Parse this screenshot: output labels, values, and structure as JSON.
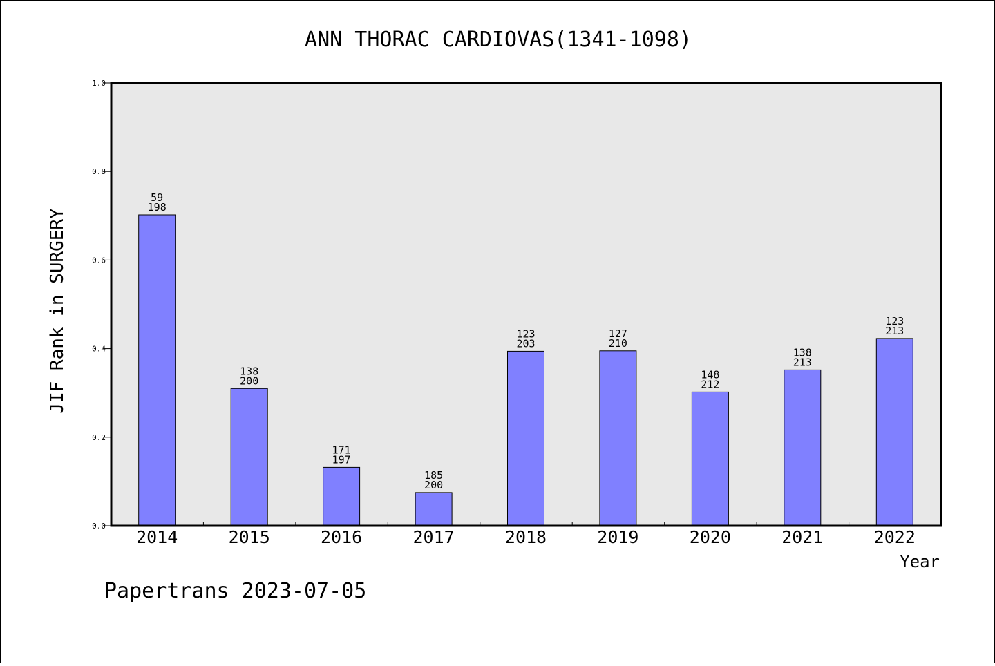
{
  "chart_data": {
    "type": "bar",
    "title": "ANN THORAC CARDIOVAS(1341-1098)",
    "xlabel": "Year",
    "ylabel": "JIF Rank in SURGERY",
    "categories": [
      "2014",
      "2015",
      "2016",
      "2017",
      "2018",
      "2019",
      "2020",
      "2021",
      "2022"
    ],
    "values": [
      0.702,
      0.31,
      0.132,
      0.075,
      0.394,
      0.395,
      0.302,
      0.352,
      0.423
    ],
    "labels_top": [
      "59",
      "138",
      "171",
      "185",
      "123",
      "127",
      "148",
      "138",
      "123"
    ],
    "labels_bottom": [
      "198",
      "200",
      "197",
      "200",
      "203",
      "210",
      "212",
      "213",
      "213"
    ],
    "ylim": [
      0,
      1.0
    ],
    "yticks": [
      "0.0",
      "0.2",
      "0.4",
      "0.6",
      "0.8",
      "1.0"
    ],
    "bar_color": "#8080ff",
    "plot_background": "#e8e8e8",
    "grid": false
  },
  "footer": "Papertrans 2023-07-05"
}
